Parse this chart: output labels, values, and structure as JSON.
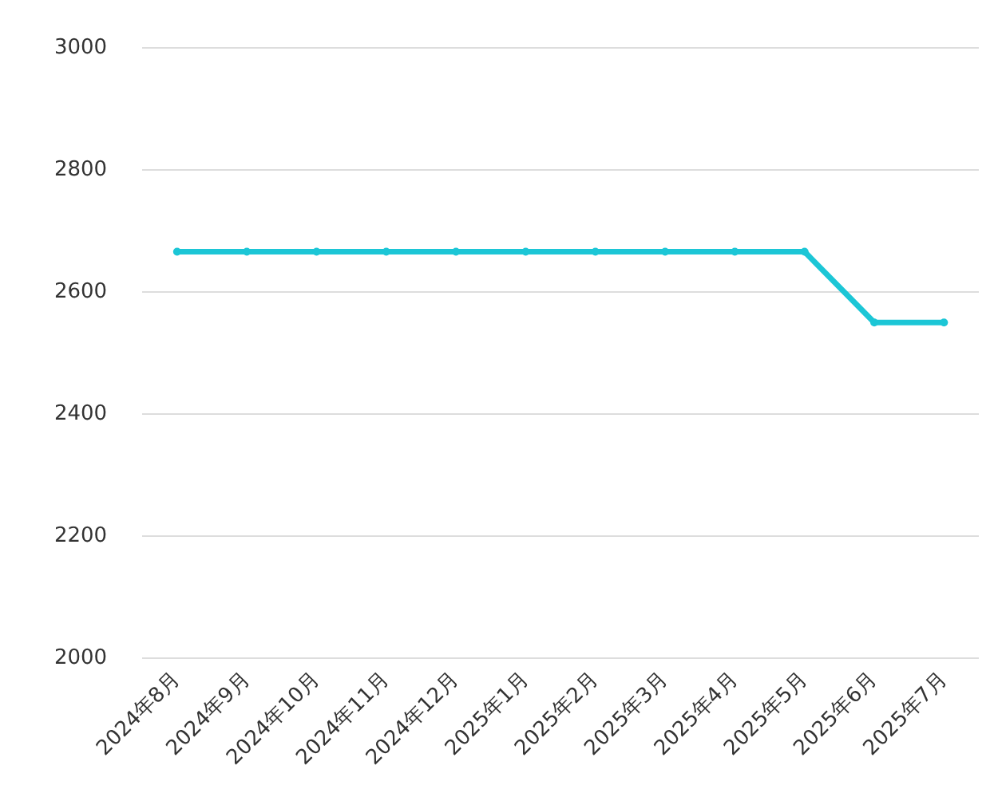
{
  "chart_data": {
    "type": "line",
    "categories": [
      "2024年8月",
      "2024年9月",
      "2024年10月",
      "2024年11月",
      "2024年12月",
      "2025年1月",
      "2025年2月",
      "2025年3月",
      "2025年4月",
      "2025年5月",
      "2025年6月",
      "2025年7月"
    ],
    "series": [
      {
        "color": "#1cc6d6",
        "values": [
          2666,
          2666,
          2666,
          2666,
          2666,
          2666,
          2666,
          2666,
          2666,
          2666,
          2550,
          2550
        ]
      }
    ],
    "ylim": [
      2000,
      3000
    ],
    "yticks": [
      2000,
      2200,
      2400,
      2600,
      2800,
      3000
    ],
    "grid": "y",
    "legend": false,
    "marker": "circle",
    "line_style": "solid"
  }
}
